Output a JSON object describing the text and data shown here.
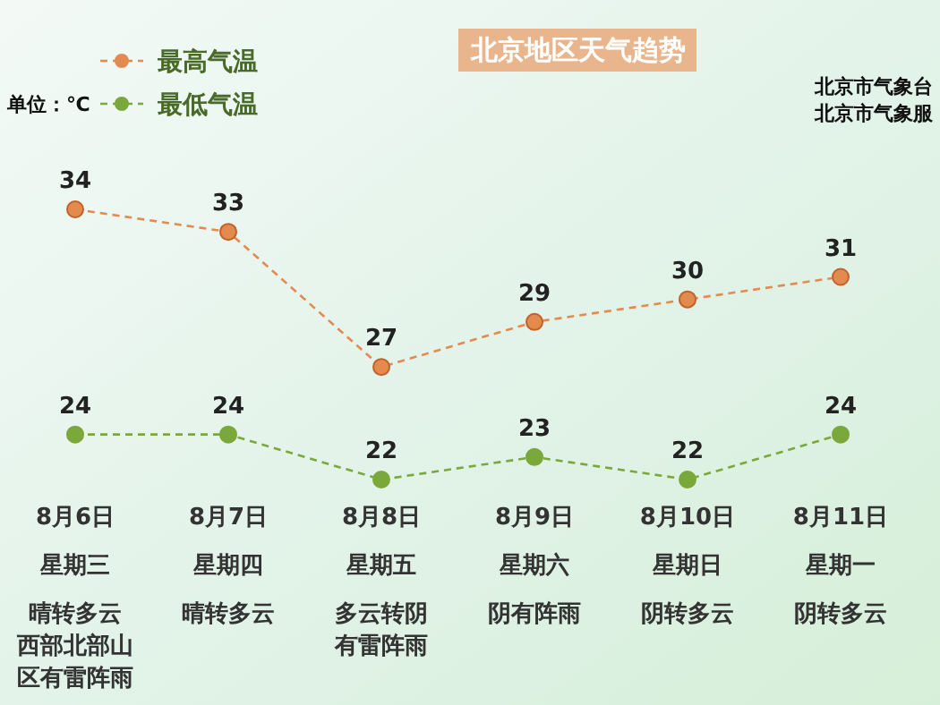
{
  "chart_data": {
    "type": "line",
    "title": "北京地区天气趋势",
    "categories": [
      "8月6日",
      "8月7日",
      "8月8日",
      "8月9日",
      "8月10日",
      "8月11日"
    ],
    "series": [
      {
        "name": "最高气温",
        "color": "#e38a4f",
        "values": [
          34,
          33,
          27,
          29,
          30,
          31
        ]
      },
      {
        "name": "最低气温",
        "color": "#7aa83a",
        "values": [
          24,
          24,
          22,
          23,
          22,
          24
        ]
      }
    ],
    "data_labels": true,
    "marker": "circle",
    "line_style": "dashed",
    "legend": "top left",
    "grid": false,
    "annotations": [
      "单位：℃",
      "北京市气象台",
      "北京市气象服",
      "星期三",
      "晴转多云",
      "西部北部山",
      "区有雷阵雨",
      "星期四",
      "晴转多云",
      "星期五",
      "多云转阴",
      "有雷阵雨",
      "星期六",
      "阴有阵雨",
      "星期日",
      "阴转多云",
      "星期一",
      "阴转多云"
    ]
  }
}
